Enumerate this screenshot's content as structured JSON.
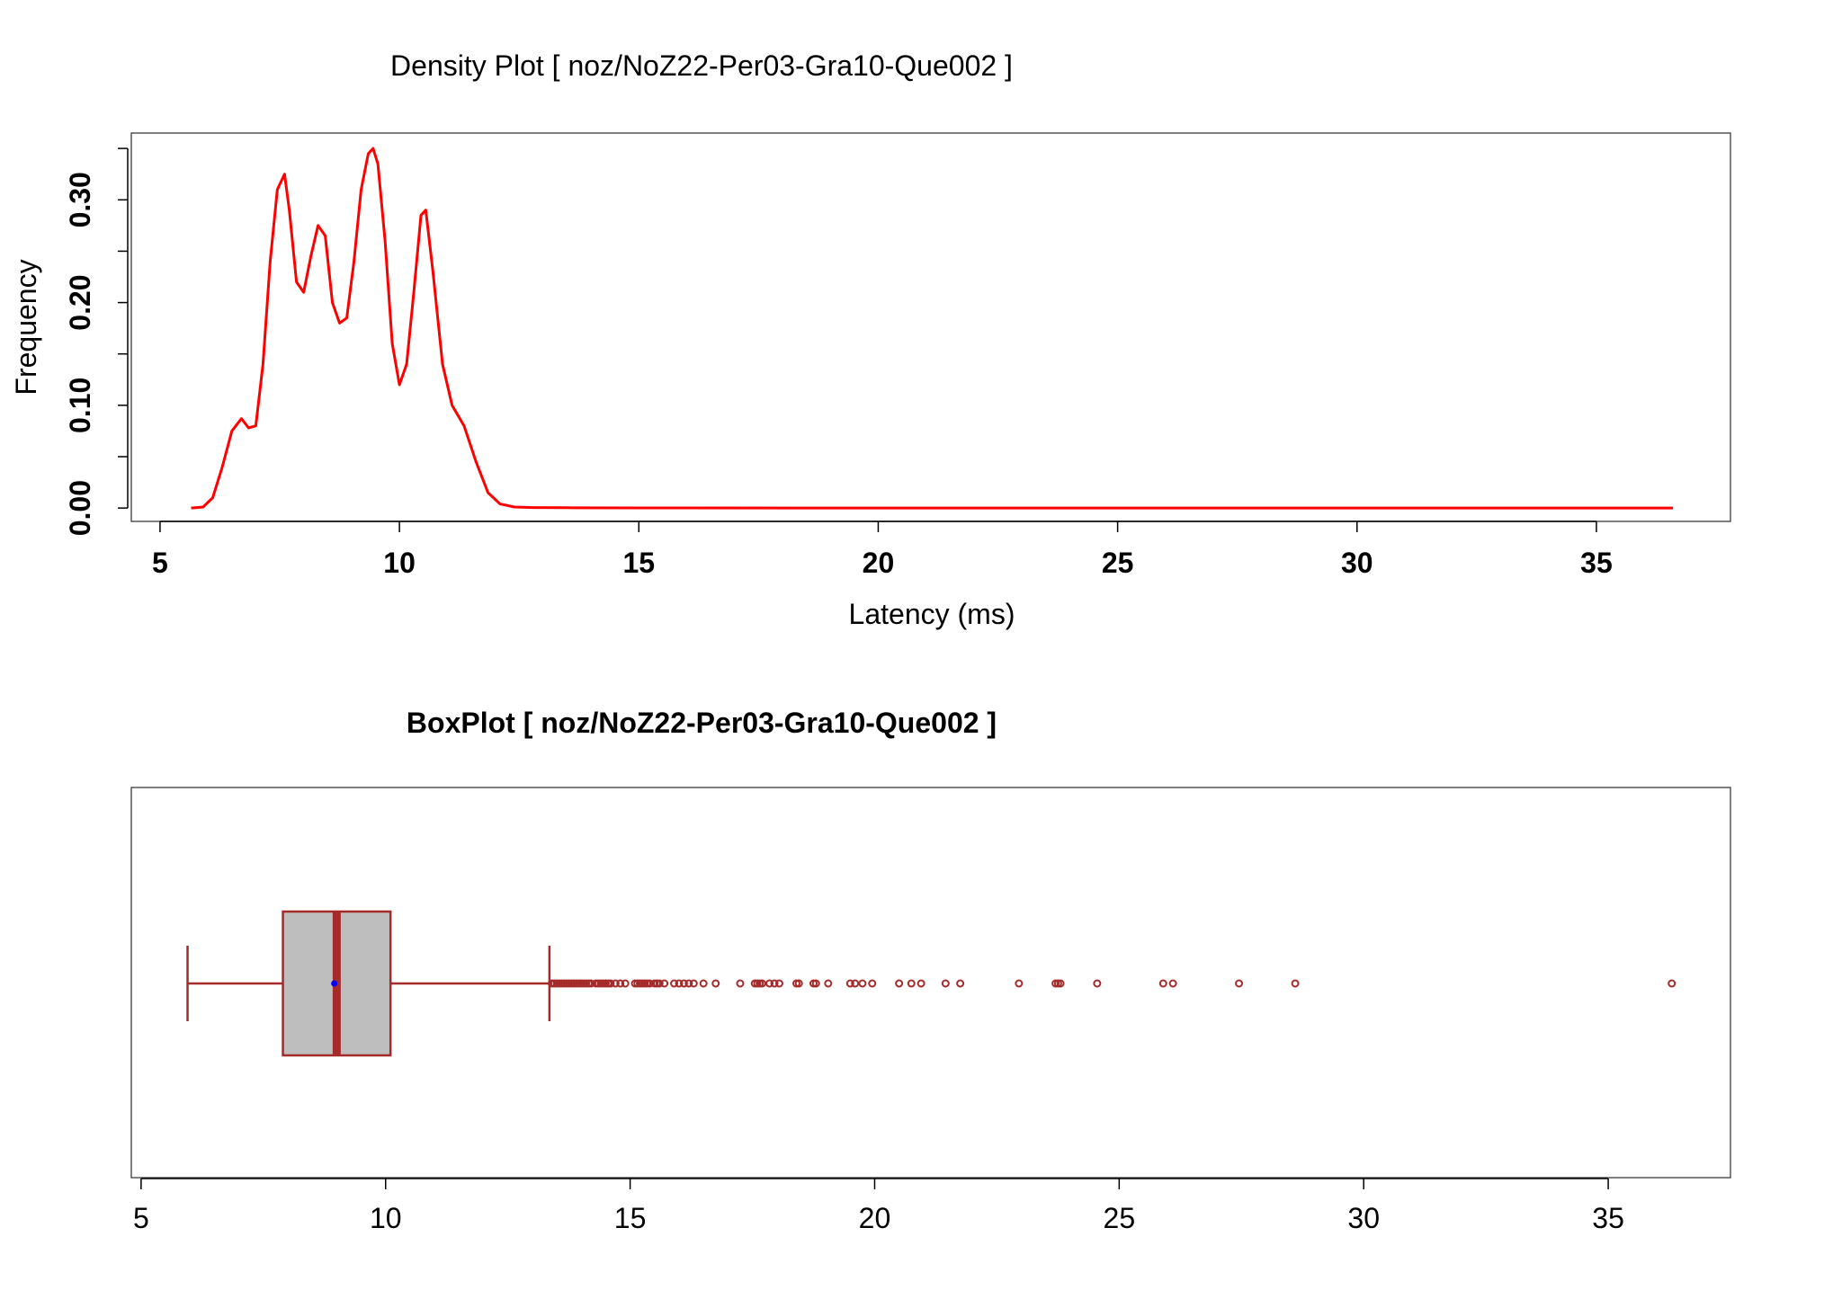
{
  "colors": {
    "density_line": "#ff0000",
    "box_border": "#a52a2a",
    "box_fill": "#bebebe",
    "mean_point": "#0000ff",
    "frame": "#555555"
  },
  "chart_data": [
    {
      "type": "line",
      "title": "Density Plot [ noz/NoZ22-Per03-Gra10-Que002 ]",
      "xlabel": "Latency (ms)",
      "ylabel": "Frequency",
      "xlim": [
        4.4,
        37.8
      ],
      "ylim": [
        -0.013,
        0.365
      ],
      "x_ticks": [
        5,
        10,
        15,
        20,
        25,
        30,
        35
      ],
      "x_tick_labels": [
        "5",
        "10",
        "15",
        "20",
        "25",
        "30",
        "35"
      ],
      "y_ticks": [
        0.0,
        0.1,
        0.2,
        0.3
      ],
      "y_tick_labels": [
        "0.00",
        "0.10",
        "0.20",
        "0.30"
      ],
      "y_minor_ticks": [
        0.05,
        0.15,
        0.25,
        0.35
      ],
      "grid": false,
      "series": [
        {
          "x": [
            5.65,
            5.9,
            6.1,
            6.3,
            6.5,
            6.7,
            6.85,
            7.0,
            7.15,
            7.3,
            7.45,
            7.6,
            7.7,
            7.85,
            8.0,
            8.15,
            8.3,
            8.45,
            8.6,
            8.75,
            8.9,
            9.05,
            9.2,
            9.35,
            9.45,
            9.55,
            9.7,
            9.85,
            10.0,
            10.15,
            10.3,
            10.45,
            10.55,
            10.7,
            10.9,
            11.1,
            11.35,
            11.6,
            11.85,
            12.1,
            12.4,
            12.8,
            13.5,
            15,
            20,
            25,
            30,
            35,
            36.6
          ],
          "y": [
            0.0,
            0.001,
            0.01,
            0.04,
            0.075,
            0.087,
            0.078,
            0.08,
            0.14,
            0.24,
            0.31,
            0.325,
            0.29,
            0.22,
            0.21,
            0.245,
            0.275,
            0.265,
            0.2,
            0.18,
            0.185,
            0.24,
            0.31,
            0.345,
            0.35,
            0.335,
            0.26,
            0.16,
            0.12,
            0.14,
            0.21,
            0.285,
            0.29,
            0.23,
            0.14,
            0.1,
            0.08,
            0.045,
            0.015,
            0.004,
            0.001,
            0.0005,
            0.0003,
            0.0001,
            0.0,
            0.0,
            0.0,
            0.0,
            0.0
          ]
        }
      ]
    },
    {
      "type": "box",
      "title": "BoxPlot [ noz/NoZ22-Per03-Gra10-Que002 ]",
      "xlim": [
        4.8,
        37.5
      ],
      "x_ticks": [
        5,
        10,
        15,
        20,
        25,
        30,
        35
      ],
      "x_tick_labels": [
        "5",
        "10",
        "15",
        "20",
        "25",
        "30",
        "35"
      ],
      "whisker_low": 5.95,
      "q1": 7.9,
      "median": 9.0,
      "mean": 8.95,
      "q3": 10.1,
      "whisker_high": 13.35,
      "outliers": [
        13.4,
        13.45,
        13.5,
        13.55,
        13.6,
        13.65,
        13.7,
        13.75,
        13.8,
        13.85,
        13.9,
        13.95,
        14.0,
        14.05,
        14.1,
        14.15,
        14.2,
        14.3,
        14.35,
        14.4,
        14.45,
        14.5,
        14.55,
        14.6,
        14.7,
        14.8,
        14.9,
        15.1,
        15.15,
        15.2,
        15.25,
        15.3,
        15.35,
        15.4,
        15.5,
        15.55,
        15.6,
        15.7,
        15.9,
        16.0,
        16.1,
        16.2,
        16.3,
        16.5,
        16.75,
        17.25,
        17.55,
        17.6,
        17.65,
        17.7,
        17.85,
        17.95,
        18.05,
        18.4,
        18.45,
        18.75,
        18.8,
        19.05,
        19.5,
        19.6,
        19.75,
        19.95,
        20.5,
        20.75,
        20.95,
        21.45,
        21.75,
        22.95,
        23.7,
        23.75,
        23.8,
        24.55,
        25.9,
        26.1,
        27.45,
        28.6,
        36.3
      ]
    }
  ]
}
